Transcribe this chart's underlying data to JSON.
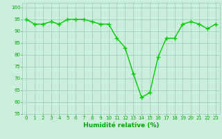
{
  "x": [
    0,
    1,
    2,
    3,
    4,
    5,
    6,
    7,
    8,
    9,
    10,
    11,
    12,
    13,
    14,
    15,
    16,
    17,
    18,
    19,
    20,
    21,
    22,
    23
  ],
  "y": [
    95,
    93,
    93,
    94,
    93,
    95,
    95,
    95,
    94,
    93,
    93,
    87,
    83,
    72,
    62,
    64,
    79,
    87,
    87,
    93,
    94,
    93,
    91,
    93
  ],
  "line_color": "#00cc00",
  "marker": "+",
  "marker_size": 4,
  "bg_color": "#cceedd",
  "grid_color": "#99ccbb",
  "xlabel": "Humidité relative (%)",
  "xlabel_color": "#00aa00",
  "tick_color": "#00aa00",
  "ylim": [
    55,
    102
  ],
  "xlim": [
    -0.5,
    23.5
  ],
  "yticks": [
    55,
    60,
    65,
    70,
    75,
    80,
    85,
    90,
    95,
    100
  ],
  "xticks": [
    0,
    1,
    2,
    3,
    4,
    5,
    6,
    7,
    8,
    9,
    10,
    11,
    12,
    13,
    14,
    15,
    16,
    17,
    18,
    19,
    20,
    21,
    22,
    23
  ],
  "linewidth": 1.0,
  "marker_color": "#00cc00",
  "tick_fontsize": 5,
  "xlabel_fontsize": 6.5
}
